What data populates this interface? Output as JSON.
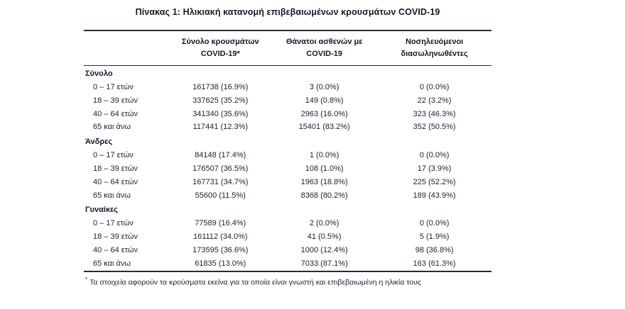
{
  "title": "Πίνακας 1: Ηλικιακή κατανομή επιβεβαιωμένων κρουσμάτων COVID-19",
  "table": {
    "col_headers": {
      "cases": "Σύνολο κρουσμάτων\nCOVID-19*",
      "deaths": "Θάνατοι ασθενών με\nCOVID-19",
      "intubated": "Νοσηλευόμενοι\nδιασωληνωθέντες"
    },
    "sections": [
      {
        "label": "Σύνολο",
        "rows": [
          {
            "age": "0 – 17 ετών",
            "cases": "161738 (16.9%)",
            "deaths": "3 (0.0%)",
            "intubated": "0 (0.0%)"
          },
          {
            "age": "18 – 39 ετών",
            "cases": "337625 (35.2%)",
            "deaths": "149 (0.8%)",
            "intubated": "22 (3.2%)"
          },
          {
            "age": "40 – 64 ετών",
            "cases": "341340 (35.6%)",
            "deaths": "2963 (16.0%)",
            "intubated": "323 (46.3%)"
          },
          {
            "age": "65 και άνω",
            "cases": "117441 (12.3%)",
            "deaths": "15401 (83.2%)",
            "intubated": "352 (50.5%)"
          }
        ]
      },
      {
        "label": "Άνδρες",
        "rows": [
          {
            "age": "0 – 17 ετών",
            "cases": "84148 (17.4%)",
            "deaths": "1 (0.0%)",
            "intubated": "0 (0.0%)"
          },
          {
            "age": "18 – 39 ετών",
            "cases": "176507 (36.5%)",
            "deaths": "108 (1.0%)",
            "intubated": "17 (3.9%)"
          },
          {
            "age": "40 – 64 ετών",
            "cases": "167731 (34.7%)",
            "deaths": "1963 (18.8%)",
            "intubated": "225 (52.2%)"
          },
          {
            "age": "65 και άνω",
            "cases": "55600 (11.5%)",
            "deaths": "8368 (80.2%)",
            "intubated": "189 (43.9%)"
          }
        ]
      },
      {
        "label": "Γυναίκες",
        "rows": [
          {
            "age": "0 – 17 ετών",
            "cases": "77589 (16.4%)",
            "deaths": "2 (0.0%)",
            "intubated": "0 (0.0%)"
          },
          {
            "age": "18 – 39 ετών",
            "cases": "161112 (34.0%)",
            "deaths": "41 (0.5%)",
            "intubated": "5 (1.9%)"
          },
          {
            "age": "40 – 64 ετών",
            "cases": "173595 (36.6%)",
            "deaths": "1000 (12.4%)",
            "intubated": "98 (36.8%)"
          },
          {
            "age": "65 και άνω",
            "cases": "61835 (13.0%)",
            "deaths": "7033 (87.1%)",
            "intubated": "163 (61.3%)"
          }
        ]
      }
    ]
  },
  "footnote": {
    "marker": "*",
    "text": "Τα στοιχεία αφορούν τα κρούσματα εκείνα για τα οποία είναι γνωστή και επιβεβαιωμένη η ηλικία τους"
  }
}
